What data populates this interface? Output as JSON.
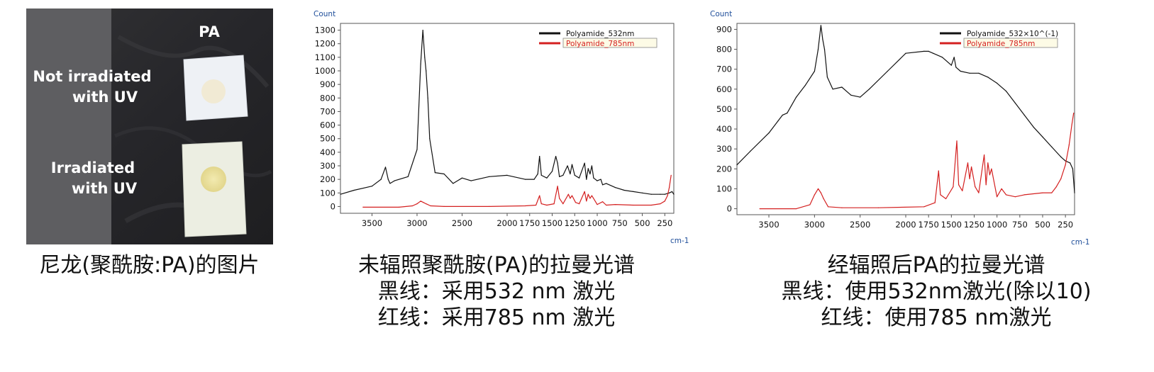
{
  "photo": {
    "label_pa": "PA",
    "label_not_irradiated_line1": "Not irradiated",
    "label_not_irradiated_line2": "with UV",
    "label_irradiated_line1": "Irradiated",
    "label_irradiated_line2": "with UV"
  },
  "captions": {
    "photo": [
      "尼龙(聚酰胺:PA)的图片"
    ],
    "chart1": [
      "未辐照聚酰胺(PA)的拉曼光谱",
      "黑线：采用532 nm 激光",
      "红线：采用785 nm 激光"
    ],
    "chart2": [
      "经辐照后PA的拉曼光谱",
      "黑线：使用532nm激光(除以10)",
      "红线：使用785 nm激光"
    ]
  },
  "colors": {
    "black_series": "#111111",
    "red_series": "#d42020",
    "axis_unit": "#1f4e9a",
    "photo_bg_dark": "#2a2a2c",
    "photo_bg_grey": "#5d5d60"
  },
  "chart_data": [
    {
      "type": "line",
      "ylabel": "Count",
      "xlabel": "cm-1",
      "xlim": [
        3850,
        150
      ],
      "ylim": [
        -50,
        1350
      ],
      "x_reversed": true,
      "xticks": [
        3500,
        3000,
        2500,
        2000,
        1750,
        1500,
        1250,
        1000,
        750,
        500,
        250
      ],
      "yticks": [
        0,
        100,
        200,
        300,
        400,
        500,
        600,
        700,
        800,
        900,
        1000,
        1100,
        1200,
        1300
      ],
      "legend_position": "top-right",
      "series": [
        {
          "name": "Polyamide_532nm",
          "color": "#111111",
          "x": [
            3850,
            3700,
            3500,
            3400,
            3350,
            3320,
            3300,
            3250,
            3100,
            3000,
            2960,
            2935,
            2915,
            2900,
            2880,
            2860,
            2800,
            2700,
            2600,
            2500,
            2400,
            2200,
            2000,
            1800,
            1700,
            1660,
            1640,
            1620,
            1560,
            1500,
            1460,
            1440,
            1420,
            1380,
            1330,
            1300,
            1280,
            1250,
            1200,
            1140,
            1120,
            1100,
            1080,
            1060,
            1040,
            1000,
            960,
            940,
            900,
            800,
            700,
            600,
            500,
            400,
            300,
            250,
            200,
            170,
            150
          ],
          "values": [
            90,
            120,
            150,
            200,
            290,
            200,
            170,
            190,
            220,
            420,
            1050,
            1300,
            1100,
            1000,
            800,
            500,
            250,
            240,
            170,
            210,
            190,
            220,
            230,
            200,
            200,
            240,
            370,
            230,
            210,
            260,
            370,
            320,
            220,
            230,
            300,
            240,
            310,
            230,
            210,
            320,
            200,
            280,
            240,
            300,
            210,
            190,
            200,
            160,
            170,
            140,
            120,
            110,
            100,
            90,
            90,
            90,
            100,
            110,
            90
          ]
        },
        {
          "name": "Polyamide_785nm",
          "color": "#d42020",
          "x": [
            3600,
            3200,
            3050,
            3000,
            2960,
            2930,
            2900,
            2850,
            2700,
            2200,
            1800,
            1680,
            1640,
            1620,
            1560,
            1480,
            1440,
            1420,
            1380,
            1320,
            1300,
            1280,
            1240,
            1200,
            1140,
            1120,
            1100,
            1080,
            1060,
            1000,
            940,
            900,
            800,
            600,
            400,
            300,
            250,
            220,
            200,
            180
          ],
          "values": [
            -5,
            -5,
            5,
            20,
            40,
            30,
            20,
            5,
            0,
            0,
            5,
            10,
            80,
            20,
            10,
            20,
            150,
            60,
            20,
            90,
            60,
            80,
            30,
            20,
            110,
            40,
            90,
            60,
            80,
            15,
            35,
            10,
            15,
            10,
            10,
            20,
            40,
            80,
            140,
            230
          ]
        }
      ]
    },
    {
      "type": "line",
      "ylabel": "Count",
      "xlabel": "cm-1",
      "xlim": [
        3850,
        150
      ],
      "ylim": [
        -30,
        930
      ],
      "x_reversed": true,
      "xticks": [
        3500,
        3000,
        2500,
        2000,
        1750,
        1500,
        1250,
        1000,
        750,
        500,
        250
      ],
      "yticks": [
        0,
        100,
        200,
        300,
        400,
        500,
        600,
        700,
        800,
        900
      ],
      "legend_position": "top-right",
      "series": [
        {
          "name": "Polyamide_532×10^(-1)",
          "color": "#111111",
          "x": [
            3850,
            3700,
            3500,
            3400,
            3350,
            3300,
            3200,
            3100,
            3000,
            2960,
            2930,
            2910,
            2890,
            2860,
            2800,
            2700,
            2600,
            2500,
            2400,
            2200,
            2000,
            1800,
            1750,
            1700,
            1600,
            1500,
            1470,
            1450,
            1400,
            1300,
            1200,
            1100,
            1000,
            900,
            800,
            700,
            600,
            500,
            400,
            300,
            250,
            200,
            170,
            150
          ],
          "values": [
            220,
            290,
            380,
            440,
            470,
            480,
            560,
            620,
            690,
            800,
            920,
            850,
            800,
            660,
            600,
            610,
            570,
            560,
            600,
            690,
            780,
            790,
            790,
            780,
            760,
            720,
            760,
            710,
            690,
            680,
            680,
            660,
            630,
            590,
            530,
            470,
            410,
            360,
            310,
            260,
            240,
            230,
            200,
            80
          ]
        },
        {
          "name": "Polyamide_785nm",
          "color": "#d42020",
          "x": [
            3600,
            3200,
            3050,
            3000,
            2960,
            2930,
            2900,
            2850,
            2700,
            2300,
            1800,
            1680,
            1640,
            1620,
            1560,
            1480,
            1440,
            1420,
            1380,
            1320,
            1300,
            1280,
            1240,
            1200,
            1140,
            1120,
            1100,
            1080,
            1060,
            1000,
            950,
            900,
            800,
            700,
            500,
            400,
            350,
            300,
            250,
            210,
            180,
            160
          ],
          "values": [
            0,
            0,
            20,
            70,
            100,
            80,
            50,
            10,
            5,
            5,
            10,
            30,
            190,
            70,
            50,
            110,
            340,
            120,
            90,
            230,
            150,
            210,
            110,
            80,
            270,
            120,
            230,
            170,
            200,
            60,
            100,
            70,
            60,
            70,
            80,
            80,
            110,
            150,
            220,
            320,
            420,
            480
          ]
        }
      ]
    }
  ]
}
